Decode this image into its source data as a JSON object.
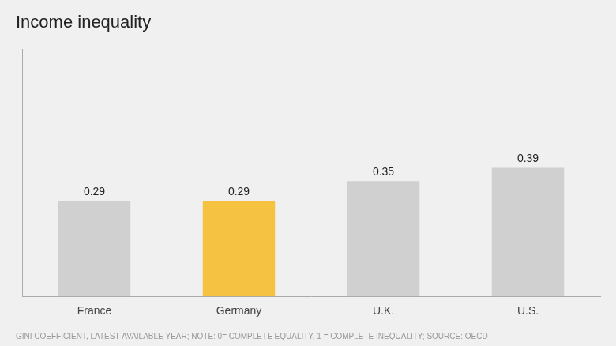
{
  "chart_data": {
    "type": "bar",
    "title": "Income inequality",
    "categories": [
      "France",
      "Germany",
      "U.K.",
      "U.S."
    ],
    "values": [
      0.29,
      0.29,
      0.35,
      0.39
    ],
    "colors": [
      "#d0d0d0",
      "#f5c242",
      "#d0d0d0",
      "#d0d0d0"
    ],
    "ylim": [
      0,
      0.75
    ],
    "grid": false,
    "tick_labels": "x",
    "data_labels": true,
    "annotations": [
      "GINI COEFFICIENT, LATEST AVAILABLE YEAR; NOTE: 0= COMPLETE EQUALITY, 1 = COMPLETE INEQUALITY; SOURCE: OECD"
    ]
  }
}
